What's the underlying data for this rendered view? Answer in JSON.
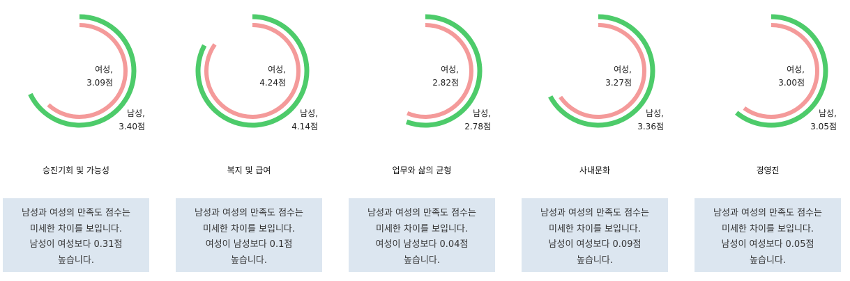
{
  "colors": {
    "male": "#4dcb6a",
    "female": "#f49a9a",
    "note_bg": "#dce6f0"
  },
  "chart_data": [
    {
      "type": "radial-bar",
      "title": "승진기회 및 가능성",
      "max": 5,
      "series": [
        {
          "name": "남성",
          "value": 3.4,
          "label": [
            "남성,",
            "3.40점"
          ]
        },
        {
          "name": "여성",
          "value": 3.09,
          "label": [
            "여성,",
            "3.09점"
          ]
        }
      ],
      "note": [
        "남성과 여성의 만족도 점수는",
        "미세한 차이를 보입니다.",
        "남성이 여성보다 0.31점",
        "높습니다."
      ]
    },
    {
      "type": "radial-bar",
      "title": "복지 및 급여",
      "max": 5,
      "series": [
        {
          "name": "남성",
          "value": 4.14,
          "label": [
            "남성,",
            "4.14점"
          ]
        },
        {
          "name": "여성",
          "value": 4.24,
          "label": [
            "여성,",
            "4.24점"
          ]
        }
      ],
      "note": [
        "남성과 여성의 만족도 점수는",
        "미세한 차이를 보입니다.",
        "여성이 남성보다 0.1점",
        "높습니다."
      ]
    },
    {
      "type": "radial-bar",
      "title": "업무와 삶의 균형",
      "max": 5,
      "series": [
        {
          "name": "남성",
          "value": 2.78,
          "label": [
            "남성,",
            "2.78점"
          ]
        },
        {
          "name": "여성",
          "value": 2.82,
          "label": [
            "여성,",
            "2.82점"
          ]
        }
      ],
      "note": [
        "남성과 여성의 만족도 점수는",
        "미세한 차이를 보입니다.",
        "여성이 남성보다 0.04점",
        "높습니다."
      ]
    },
    {
      "type": "radial-bar",
      "title": "사내문화",
      "max": 5,
      "series": [
        {
          "name": "남성",
          "value": 3.36,
          "label": [
            "남성,",
            "3.36점"
          ]
        },
        {
          "name": "여성",
          "value": 3.27,
          "label": [
            "여성,",
            "3.27점"
          ]
        }
      ],
      "note": [
        "남성과 여성의 만족도 점수는",
        "미세한 차이를 보입니다.",
        "남성이 여성보다 0.09점",
        "높습니다."
      ]
    },
    {
      "type": "radial-bar",
      "title": "경영진",
      "max": 5,
      "series": [
        {
          "name": "남성",
          "value": 3.05,
          "label": [
            "남성,",
            "3.05점"
          ]
        },
        {
          "name": "여성",
          "value": 3.0,
          "label": [
            "여성,",
            "3.00점"
          ]
        }
      ],
      "note": [
        "남성과 여성의 만족도 점수는",
        "미세한 차이를 보입니다.",
        "남성이 여성보다 0.05점",
        "높습니다."
      ]
    }
  ]
}
